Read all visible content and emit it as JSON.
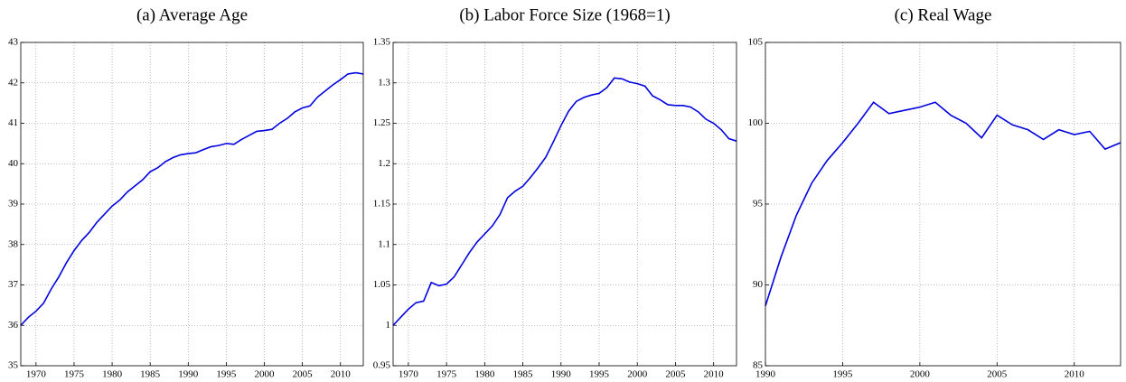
{
  "chart_data": [
    {
      "type": "line",
      "title": "(a)  Average Age",
      "color": "#0000e0",
      "grid": true,
      "x": [
        1968,
        1969,
        1970,
        1971,
        1972,
        1973,
        1974,
        1975,
        1976,
        1977,
        1978,
        1979,
        1980,
        1981,
        1982,
        1983,
        1984,
        1985,
        1986,
        1987,
        1988,
        1989,
        1990,
        1991,
        1992,
        1993,
        1994,
        1995,
        1996,
        1997,
        1998,
        1999,
        2000,
        2001,
        2002,
        2003,
        2004,
        2005,
        2006,
        2007,
        2008,
        2009,
        2010,
        2011,
        2012,
        2013
      ],
      "values": [
        36.0,
        36.2,
        36.35,
        36.55,
        36.9,
        37.2,
        37.55,
        37.85,
        38.1,
        38.3,
        38.55,
        38.75,
        38.95,
        39.1,
        39.3,
        39.45,
        39.6,
        39.8,
        39.9,
        40.05,
        40.15,
        40.22,
        40.25,
        40.27,
        40.35,
        40.42,
        40.45,
        40.5,
        40.48,
        40.6,
        40.7,
        40.8,
        40.82,
        40.85,
        41.0,
        41.12,
        41.28,
        41.38,
        41.43,
        41.65,
        41.8,
        41.95,
        42.08,
        42.22,
        42.25,
        42.22
      ],
      "xlim": [
        1968,
        2013
      ],
      "xticks": [
        1970,
        1975,
        1980,
        1985,
        1990,
        1995,
        2000,
        2005,
        2010
      ],
      "ylim": [
        35,
        43
      ],
      "yticks": [
        35,
        36,
        37,
        38,
        39,
        40,
        41,
        42,
        43
      ]
    },
    {
      "type": "line",
      "title": "(b)  Labor Force Size (1968=1)",
      "color": "#0000e0",
      "grid": true,
      "x": [
        1968,
        1969,
        1970,
        1971,
        1972,
        1973,
        1974,
        1975,
        1976,
        1977,
        1978,
        1979,
        1980,
        1981,
        1982,
        1983,
        1984,
        1985,
        1986,
        1987,
        1988,
        1989,
        1990,
        1991,
        1992,
        1993,
        1994,
        1995,
        1996,
        1997,
        1998,
        1999,
        2000,
        2001,
        2002,
        2003,
        2004,
        2005,
        2006,
        2007,
        2008,
        2009,
        2010,
        2011,
        2012,
        2013
      ],
      "values": [
        1.0,
        1.01,
        1.02,
        1.028,
        1.03,
        1.053,
        1.049,
        1.051,
        1.06,
        1.075,
        1.09,
        1.103,
        1.113,
        1.123,
        1.137,
        1.158,
        1.166,
        1.172,
        1.183,
        1.195,
        1.208,
        1.227,
        1.247,
        1.265,
        1.277,
        1.282,
        1.285,
        1.287,
        1.294,
        1.306,
        1.305,
        1.301,
        1.299,
        1.296,
        1.284,
        1.279,
        1.273,
        1.272,
        1.272,
        1.27,
        1.264,
        1.255,
        1.25,
        1.242,
        1.231,
        1.228
      ],
      "xlim": [
        1968,
        2013
      ],
      "xticks": [
        1970,
        1975,
        1980,
        1985,
        1990,
        1995,
        2000,
        2005,
        2010
      ],
      "ylim": [
        0.95,
        1.35
      ],
      "yticks": [
        0.95,
        1,
        1.05,
        1.1,
        1.15,
        1.2,
        1.25,
        1.3,
        1.35
      ]
    },
    {
      "type": "line",
      "title": "(c)  Real Wage",
      "color": "#0000e0",
      "grid": true,
      "x": [
        1990,
        1991,
        1992,
        1993,
        1994,
        1995,
        1996,
        1997,
        1998,
        1999,
        2000,
        2001,
        2002,
        2003,
        2004,
        2005,
        2006,
        2007,
        2008,
        2009,
        2010,
        2011,
        2012,
        2013
      ],
      "values": [
        88.7,
        91.7,
        94.3,
        96.3,
        97.7,
        98.8,
        100.0,
        101.3,
        100.6,
        100.8,
        101.0,
        101.3,
        100.5,
        100.0,
        99.1,
        100.5,
        99.9,
        99.6,
        99.0,
        99.6,
        99.3,
        99.5,
        98.4,
        98.8
      ],
      "xlim": [
        1990,
        2013
      ],
      "xticks": [
        1990,
        1995,
        2000,
        2005,
        2010
      ],
      "ylim": [
        85,
        105
      ],
      "yticks": [
        85,
        90,
        95,
        100,
        105
      ]
    }
  ]
}
